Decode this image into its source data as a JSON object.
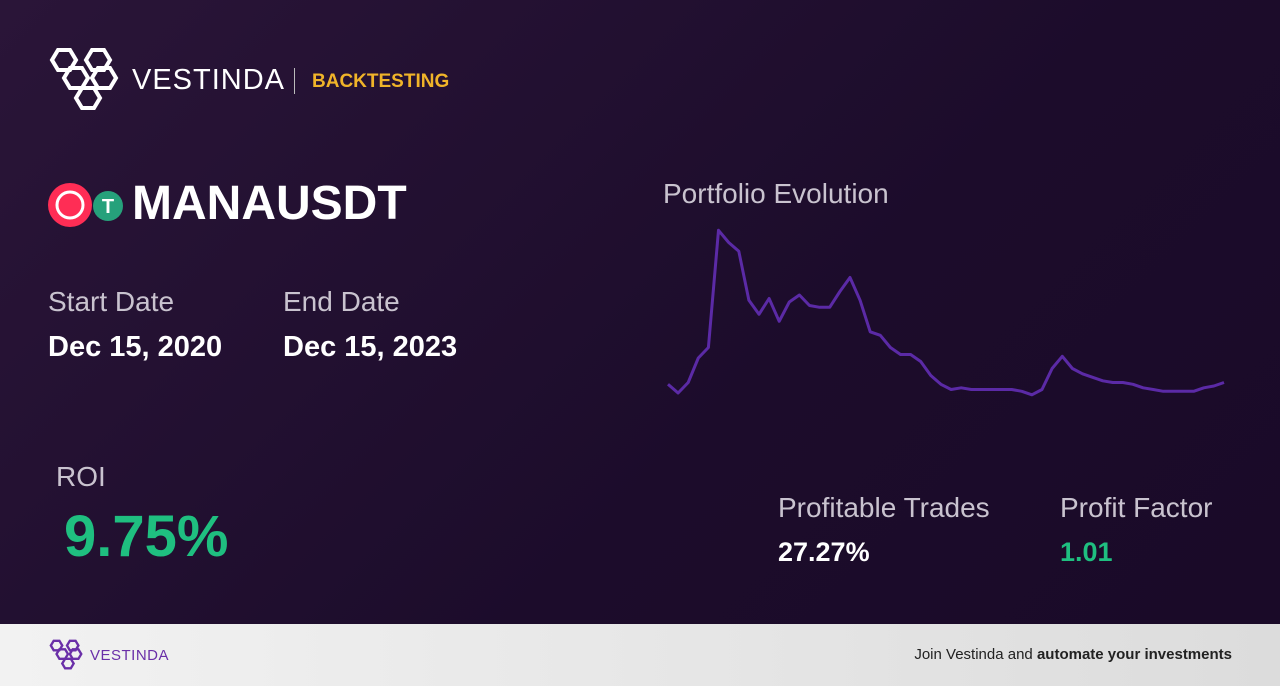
{
  "header": {
    "brand": "VESTINDA",
    "section": "BACKTESTING"
  },
  "symbol": "MANAUSDT",
  "start_date": {
    "label": "Start Date",
    "value": "Dec 15, 2020"
  },
  "end_date": {
    "label": "End Date",
    "value": "Dec 15, 2023"
  },
  "roi": {
    "label": "ROI",
    "value": "9.75%"
  },
  "profitable_trades": {
    "label": "Profitable Trades",
    "value": "27.27%"
  },
  "profit_factor": {
    "label": "Profit Factor",
    "value": "1.01"
  },
  "chart_data": {
    "type": "line",
    "title": "Portfolio Evolution",
    "color": "#5b2aa6",
    "ylim": [
      0,
      100
    ],
    "values": [
      9,
      4,
      10,
      24,
      30,
      97,
      90,
      85,
      57,
      49,
      58,
      45,
      56,
      60,
      54,
      53,
      53,
      62,
      70,
      57,
      39,
      37,
      30,
      26,
      26,
      22,
      14,
      9,
      6,
      7,
      6,
      6,
      6,
      6,
      6,
      5,
      3,
      6,
      18,
      25,
      18,
      15,
      13,
      11,
      10,
      10,
      9,
      7,
      6,
      5,
      5,
      5,
      5,
      7,
      8,
      10
    ]
  },
  "footer": {
    "brand": "VESTINDA",
    "text": "Join Vestinda and ",
    "bold": "automate your investments"
  }
}
